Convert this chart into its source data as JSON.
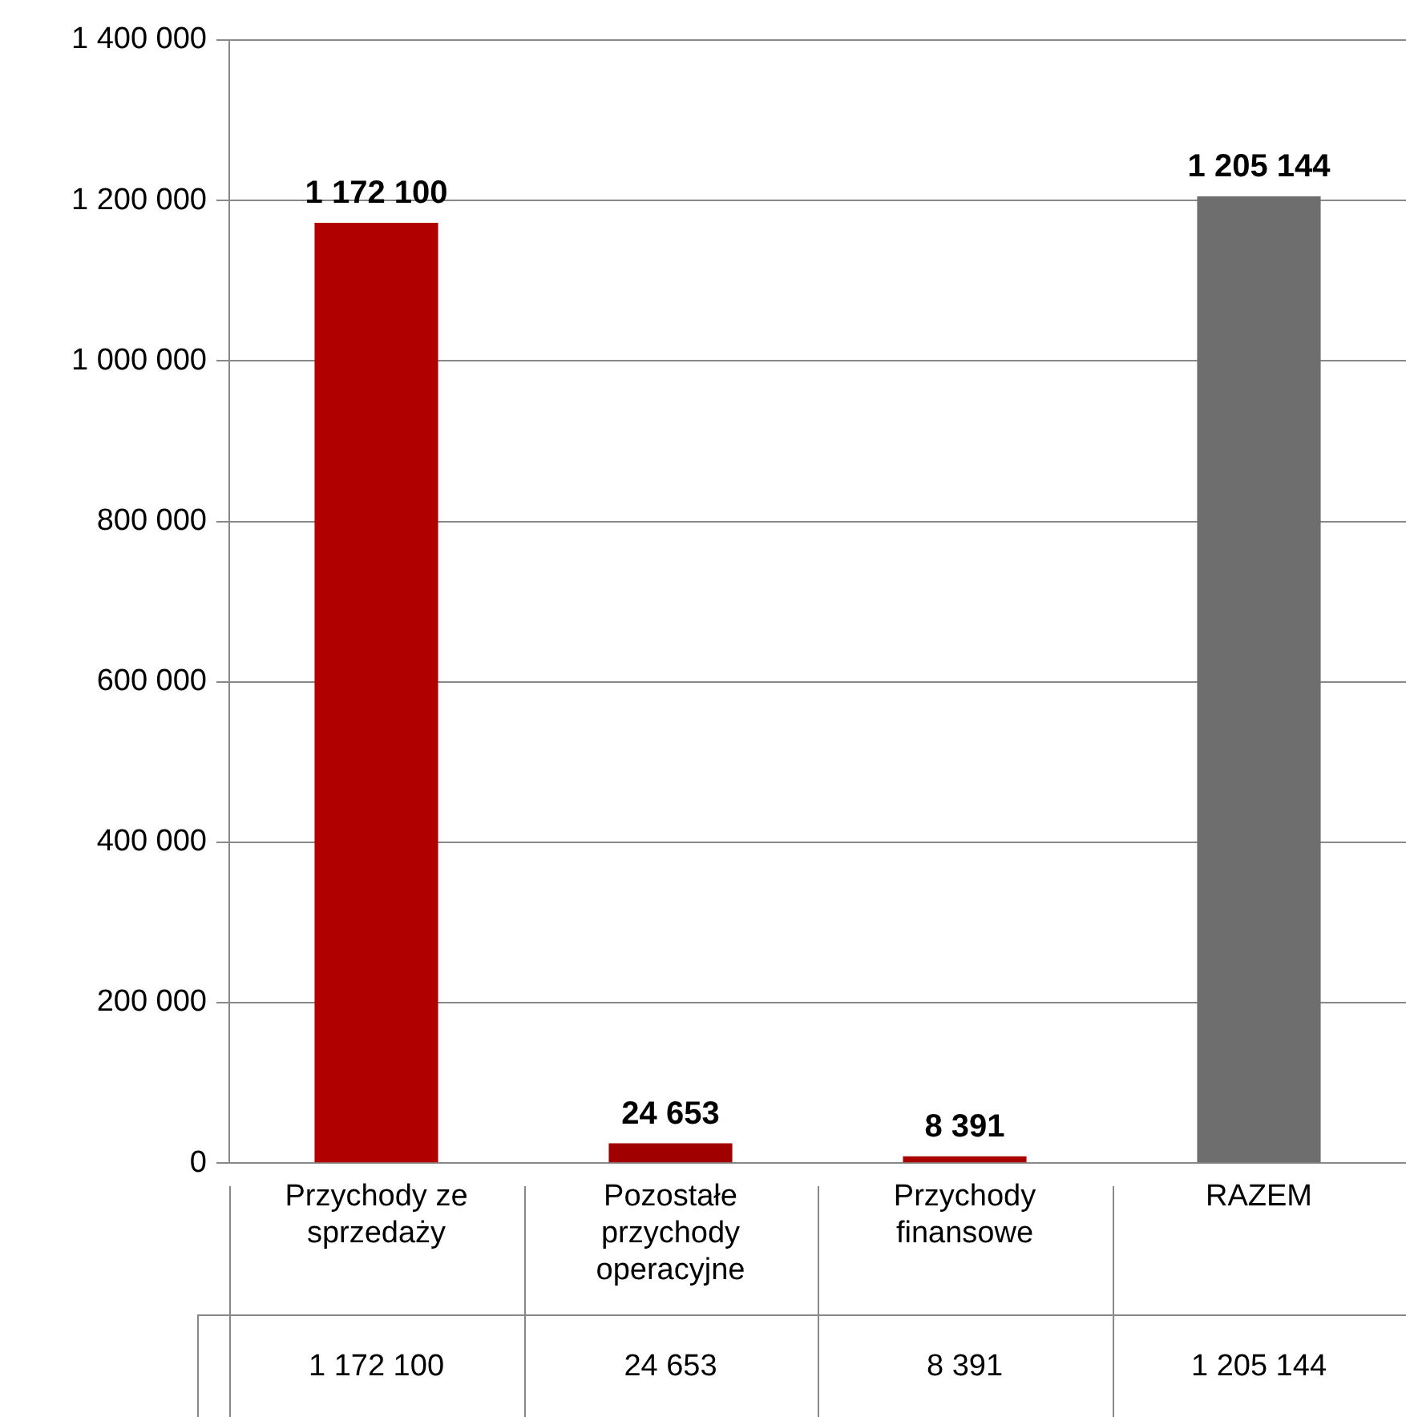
{
  "chart_data": {
    "type": "bar",
    "categories": [
      "Przychody ze sprzedaży",
      "Pozostałe przychody operacyjne",
      "Przychody finansowe",
      "RAZEM"
    ],
    "values": [
      1172100,
      24653,
      8391,
      1205144
    ],
    "colors": [
      "#b00000",
      "#a00000",
      "#a80000",
      "#6e6e6e"
    ],
    "value_labels": [
      "1 172 100",
      "24 653",
      "8 391",
      "1 205 144"
    ],
    "ylim": [
      0,
      1400000
    ],
    "yticks": [
      {
        "value": 0,
        "label": "0"
      },
      {
        "value": 200000,
        "label": "200 000"
      },
      {
        "value": 400000,
        "label": "400 000"
      },
      {
        "value": 600000,
        "label": "600 000"
      },
      {
        "value": 800000,
        "label": "800 000"
      },
      {
        "value": 1000000,
        "label": "1 000 000"
      },
      {
        "value": 1200000,
        "label": "1 200 000"
      },
      {
        "value": 1400000,
        "label": "1 400 000"
      }
    ],
    "grid": "y",
    "legend": false
  }
}
